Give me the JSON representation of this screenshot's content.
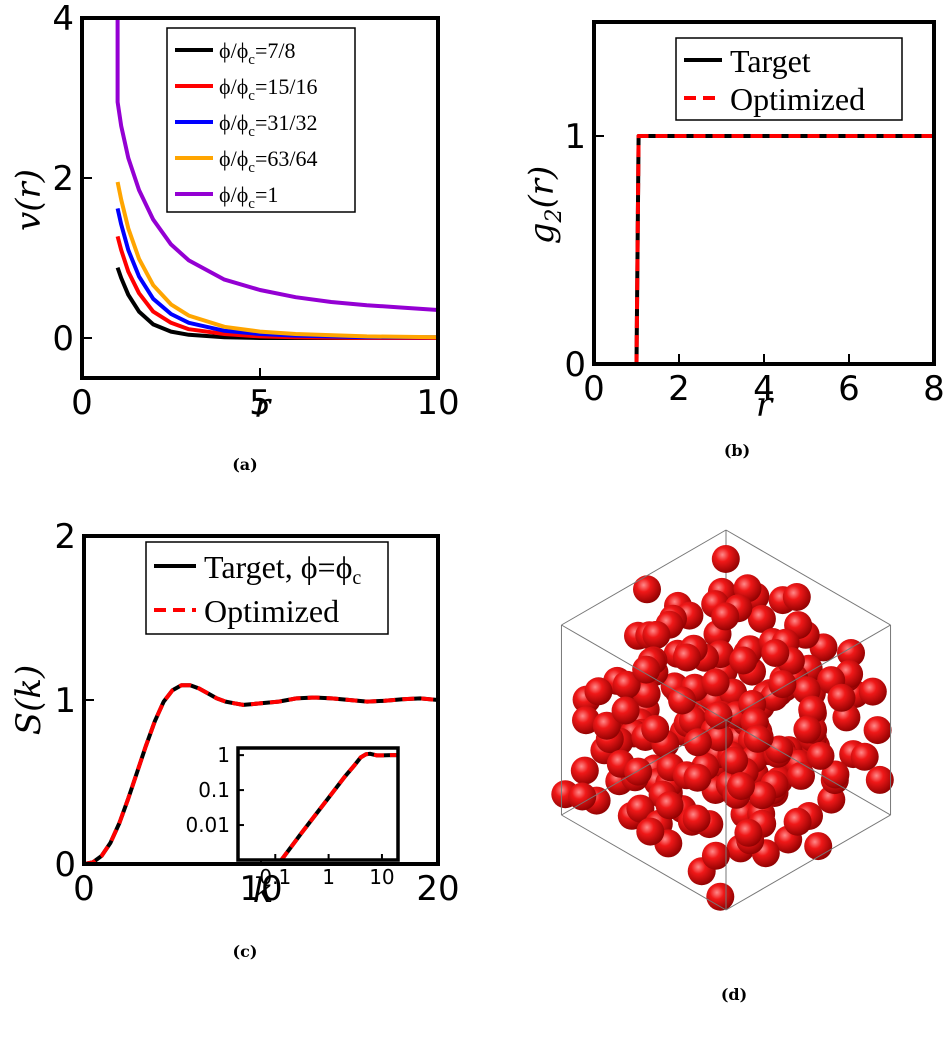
{
  "chart_data": [
    {
      "panel": "a",
      "type": "line",
      "caption": "(a)",
      "xlabel": "r",
      "ylabel": "v(r)",
      "xlim": [
        0,
        10
      ],
      "ylim": [
        -0.5,
        4
      ],
      "xticks": [
        "0",
        "5",
        "10"
      ],
      "yticks": [
        "0",
        "2",
        "4"
      ],
      "legend_position": "top-right",
      "series": [
        {
          "name": "ϕ/ϕc=7/8",
          "legend_main": "ϕ/ϕ",
          "legend_sub": "c",
          "legend_tail": "=7/8",
          "color": "#000000",
          "x": [
            1,
            1.1,
            1.3,
            1.6,
            2,
            2.5,
            3,
            4,
            5,
            6,
            8,
            10
          ],
          "y": [
            0.88,
            0.75,
            0.54,
            0.33,
            0.17,
            0.08,
            0.04,
            0.01,
            0.0,
            0.0,
            0.0,
            0.0
          ]
        },
        {
          "name": "ϕ/ϕc=15/16",
          "legend_main": "ϕ/ϕ",
          "legend_sub": "c",
          "legend_tail": "=15/16",
          "color": "#ff0000",
          "x": [
            1,
            1.1,
            1.3,
            1.6,
            2,
            2.5,
            3,
            4,
            5,
            6,
            8,
            10
          ],
          "y": [
            1.27,
            1.1,
            0.83,
            0.56,
            0.33,
            0.19,
            0.11,
            0.05,
            0.02,
            0.01,
            0.0,
            0.0
          ]
        },
        {
          "name": "ϕ/ϕc=31/32",
          "legend_main": "ϕ/ϕ",
          "legend_sub": "c",
          "legend_tail": "=31/32",
          "color": "#0000ff",
          "x": [
            1,
            1.1,
            1.3,
            1.6,
            2,
            2.5,
            3,
            4,
            5,
            6,
            8,
            10
          ],
          "y": [
            1.62,
            1.42,
            1.1,
            0.77,
            0.49,
            0.3,
            0.19,
            0.09,
            0.05,
            0.03,
            0.01,
            0.01
          ]
        },
        {
          "name": "ϕ/ϕc=63/64",
          "legend_main": "ϕ/ϕ",
          "legend_sub": "c",
          "legend_tail": "=63/64",
          "color": "#ffa500",
          "x": [
            1,
            1.1,
            1.3,
            1.6,
            2,
            2.5,
            3,
            4,
            5,
            6,
            8,
            10
          ],
          "y": [
            1.95,
            1.73,
            1.37,
            0.99,
            0.66,
            0.42,
            0.28,
            0.14,
            0.08,
            0.05,
            0.02,
            0.01
          ]
        },
        {
          "name": "ϕ/ϕc=1",
          "legend_main": "ϕ/ϕ",
          "legend_sub": "c",
          "legend_tail": "=1",
          "color": "#9400d3",
          "x": [
            1,
            1.001,
            1.1,
            1.3,
            1.6,
            2,
            2.5,
            3,
            4,
            5,
            6,
            7,
            8,
            9,
            10
          ],
          "y": [
            4.5,
            2.95,
            2.65,
            2.25,
            1.85,
            1.48,
            1.17,
            0.97,
            0.73,
            0.6,
            0.51,
            0.45,
            0.41,
            0.38,
            0.35
          ]
        }
      ]
    },
    {
      "panel": "b",
      "type": "line",
      "caption": "(b)",
      "xlabel": "r",
      "ylabel": "g",
      "ylabel_sub": "2",
      "ylabel_tail": "(r)",
      "xlim": [
        0,
        8
      ],
      "ylim": [
        0,
        1.5
      ],
      "xticks": [
        "0",
        "2",
        "4",
        "6",
        "8"
      ],
      "yticks": [
        "0",
        "1"
      ],
      "legend_position": "top-right",
      "series": [
        {
          "name": "Target",
          "color": "#000000",
          "dash": "solid",
          "x": [
            0.95,
            1.0,
            1.05,
            8
          ],
          "y": [
            0,
            0,
            1,
            1
          ]
        },
        {
          "name": "Optimized",
          "color": "#ff0000",
          "dash": "dashed",
          "x": [
            0.95,
            1.0,
            1.05,
            8
          ],
          "y": [
            0,
            0,
            1,
            1
          ]
        }
      ]
    },
    {
      "panel": "c",
      "type": "line",
      "caption": "(c)",
      "xlabel": "k",
      "ylabel": "S(k)",
      "xlim": [
        0,
        20
      ],
      "ylim": [
        0,
        2
      ],
      "xticks": [
        "0",
        "10",
        "20"
      ],
      "yticks": [
        "0",
        "1",
        "2"
      ],
      "legend_position": "top-right",
      "series": [
        {
          "name": "Target, ϕ=ϕc",
          "legend_main": "Target, ϕ=ϕ",
          "legend_sub": "c",
          "color": "#000000",
          "dash": "solid",
          "x": [
            0,
            0.5,
            1,
            1.5,
            2,
            2.5,
            3,
            3.5,
            4,
            4.5,
            5,
            5.5,
            6,
            6.5,
            7,
            7.5,
            8,
            8.5,
            9,
            9.5,
            10,
            11,
            12,
            13,
            14,
            15,
            16,
            17,
            18,
            19,
            20
          ],
          "y": [
            0,
            0.01,
            0.05,
            0.13,
            0.25,
            0.4,
            0.56,
            0.72,
            0.87,
            0.99,
            1.06,
            1.09,
            1.09,
            1.07,
            1.04,
            1.01,
            0.99,
            0.98,
            0.97,
            0.975,
            0.98,
            0.99,
            1.01,
            1.015,
            1.01,
            1.0,
            0.99,
            0.995,
            1.005,
            1.01,
            1.0
          ]
        },
        {
          "name": "Optimized",
          "color": "#ff0000",
          "dash": "dashed",
          "x": [
            0,
            0.5,
            1,
            1.5,
            2,
            2.5,
            3,
            3.5,
            4,
            4.5,
            5,
            5.5,
            6,
            6.5,
            7,
            7.5,
            8,
            8.5,
            9,
            9.5,
            10,
            11,
            12,
            13,
            14,
            15,
            16,
            17,
            18,
            19,
            20
          ],
          "y": [
            0,
            0.01,
            0.05,
            0.13,
            0.25,
            0.4,
            0.56,
            0.72,
            0.87,
            0.99,
            1.06,
            1.09,
            1.09,
            1.07,
            1.04,
            1.01,
            0.99,
            0.98,
            0.97,
            0.975,
            0.98,
            0.99,
            1.01,
            1.015,
            1.01,
            1.0,
            0.99,
            0.995,
            1.005,
            1.01,
            1.0
          ]
        }
      ],
      "inset": {
        "xscale": "log",
        "yscale": "log",
        "xlim": [
          0.02,
          20
        ],
        "ylim": [
          0.001,
          1.6
        ],
        "xticks": [
          {
            "v": 0.1,
            "label": "0.1"
          },
          {
            "v": 1,
            "label": "1"
          },
          {
            "v": 10,
            "label": "10"
          }
        ],
        "yticks": [
          {
            "v": 0.01,
            "label": "0.01"
          },
          {
            "v": 0.1,
            "label": "0.1"
          },
          {
            "v": 1,
            "label": "1"
          }
        ],
        "x": [
          0.13,
          0.3,
          0.6,
          1,
          2,
          3,
          4,
          5,
          6,
          8,
          10,
          15,
          20
        ],
        "y": [
          0.001,
          0.0055,
          0.022,
          0.06,
          0.24,
          0.5,
          0.86,
          1.06,
          1.09,
          0.98,
          0.98,
          1.0,
          1.0
        ]
      }
    },
    {
      "panel": "d",
      "type": "other",
      "caption": "(d)",
      "description_free": true
    }
  ],
  "colors": {
    "sphere": "#e01010",
    "box": "#777777"
  }
}
